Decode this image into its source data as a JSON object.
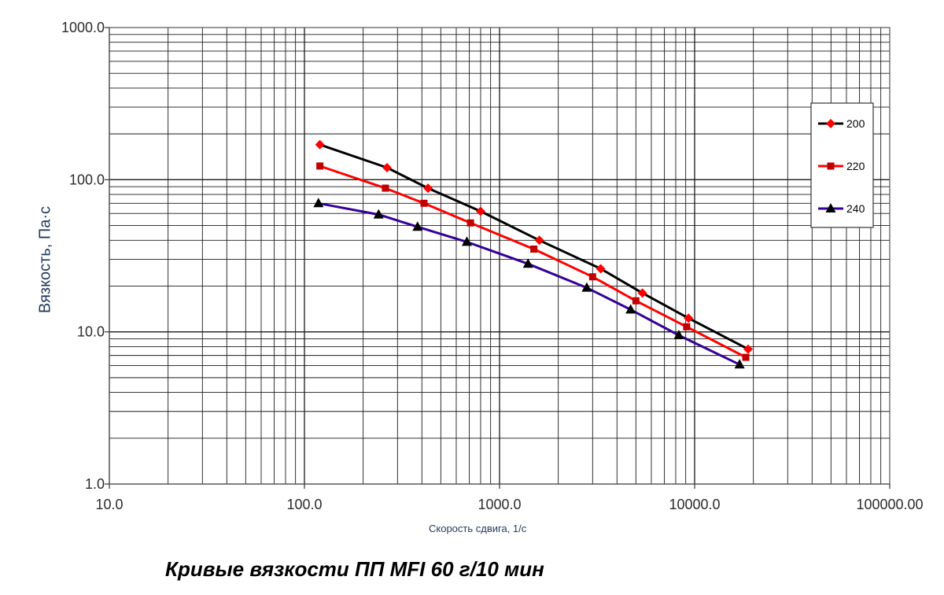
{
  "caption": "Кривые вязкости ПП MFI 60 г/10 мин",
  "chart_data": {
    "type": "line",
    "title": "",
    "xlabel": "Скорость сдвига, 1/с",
    "ylabel": "Вязкость, Па·с",
    "x_scale": "log",
    "y_scale": "log",
    "xlim": [
      10,
      100000
    ],
    "ylim": [
      1,
      1000
    ],
    "x_tick_labels": [
      "10.0",
      "100.0",
      "1000.0",
      "10000.0",
      "100000.00"
    ],
    "y_tick_labels": [
      "1.0",
      "10.0",
      "100.0",
      "1000.0"
    ],
    "grid": true,
    "legend_position": "right",
    "series": [
      {
        "name": "200",
        "color": "#000000",
        "marker_color": "#ff0000",
        "marker": "diamond",
        "points": [
          [
            120,
            170
          ],
          [
            265,
            120
          ],
          [
            430,
            88
          ],
          [
            800,
            62
          ],
          [
            1600,
            40
          ],
          [
            3300,
            26
          ],
          [
            5400,
            18
          ],
          [
            9300,
            12.3
          ],
          [
            18800,
            7.7
          ]
        ]
      },
      {
        "name": "220",
        "color": "#ff0000",
        "marker_color": "#c00000",
        "marker": "square",
        "points": [
          [
            120,
            123
          ],
          [
            260,
            88
          ],
          [
            410,
            70
          ],
          [
            710,
            52
          ],
          [
            1500,
            35
          ],
          [
            3000,
            23
          ],
          [
            5000,
            16
          ],
          [
            9100,
            10.8
          ],
          [
            18300,
            6.8
          ]
        ]
      },
      {
        "name": "240",
        "color": "#330099",
        "marker_color": "#000000",
        "marker": "triangle",
        "points": [
          [
            118,
            70
          ],
          [
            240,
            59
          ],
          [
            380,
            49
          ],
          [
            680,
            39
          ],
          [
            1400,
            28
          ],
          [
            2800,
            19.5
          ],
          [
            4700,
            14
          ],
          [
            8300,
            9.5
          ],
          [
            17000,
            6.1
          ]
        ]
      }
    ]
  }
}
